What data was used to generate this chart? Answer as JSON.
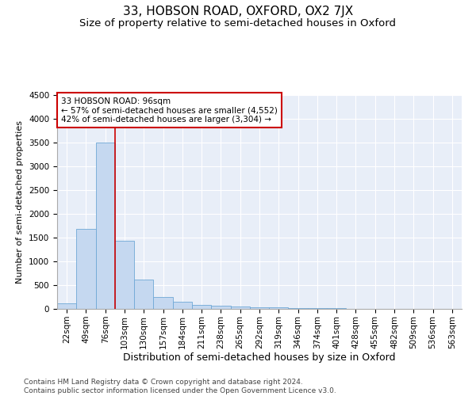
{
  "title": "33, HOBSON ROAD, OXFORD, OX2 7JX",
  "subtitle": "Size of property relative to semi-detached houses in Oxford",
  "xlabel": "Distribution of semi-detached houses by size in Oxford",
  "ylabel": "Number of semi-detached properties",
  "categories": [
    "22sqm",
    "49sqm",
    "76sqm",
    "103sqm",
    "130sqm",
    "157sqm",
    "184sqm",
    "211sqm",
    "238sqm",
    "265sqm",
    "292sqm",
    "319sqm",
    "346sqm",
    "374sqm",
    "401sqm",
    "428sqm",
    "455sqm",
    "482sqm",
    "509sqm",
    "536sqm",
    "563sqm"
  ],
  "values": [
    110,
    1680,
    3500,
    1430,
    620,
    255,
    155,
    90,
    75,
    55,
    40,
    30,
    25,
    18,
    12,
    8,
    6,
    5,
    4,
    3,
    2
  ],
  "bar_color": "#c5d8f0",
  "bar_edge_color": "#6fa8d6",
  "annotation_text": "33 HOBSON ROAD: 96sqm\n← 57% of semi-detached houses are smaller (4,552)\n42% of semi-detached houses are larger (3,304) →",
  "annotation_box_color": "#ffffff",
  "annotation_box_edge_color": "#cc0000",
  "property_line_color": "#cc0000",
  "property_line_bin": 2,
  "ylim": [
    0,
    4500
  ],
  "yticks": [
    0,
    500,
    1000,
    1500,
    2000,
    2500,
    3000,
    3500,
    4000,
    4500
  ],
  "background_color": "#e8eef8",
  "grid_color": "#ffffff",
  "footer": "Contains HM Land Registry data © Crown copyright and database right 2024.\nContains public sector information licensed under the Open Government Licence v3.0.",
  "title_fontsize": 11,
  "subtitle_fontsize": 9.5,
  "xlabel_fontsize": 9,
  "ylabel_fontsize": 8,
  "tick_fontsize": 7.5,
  "footer_fontsize": 6.5
}
